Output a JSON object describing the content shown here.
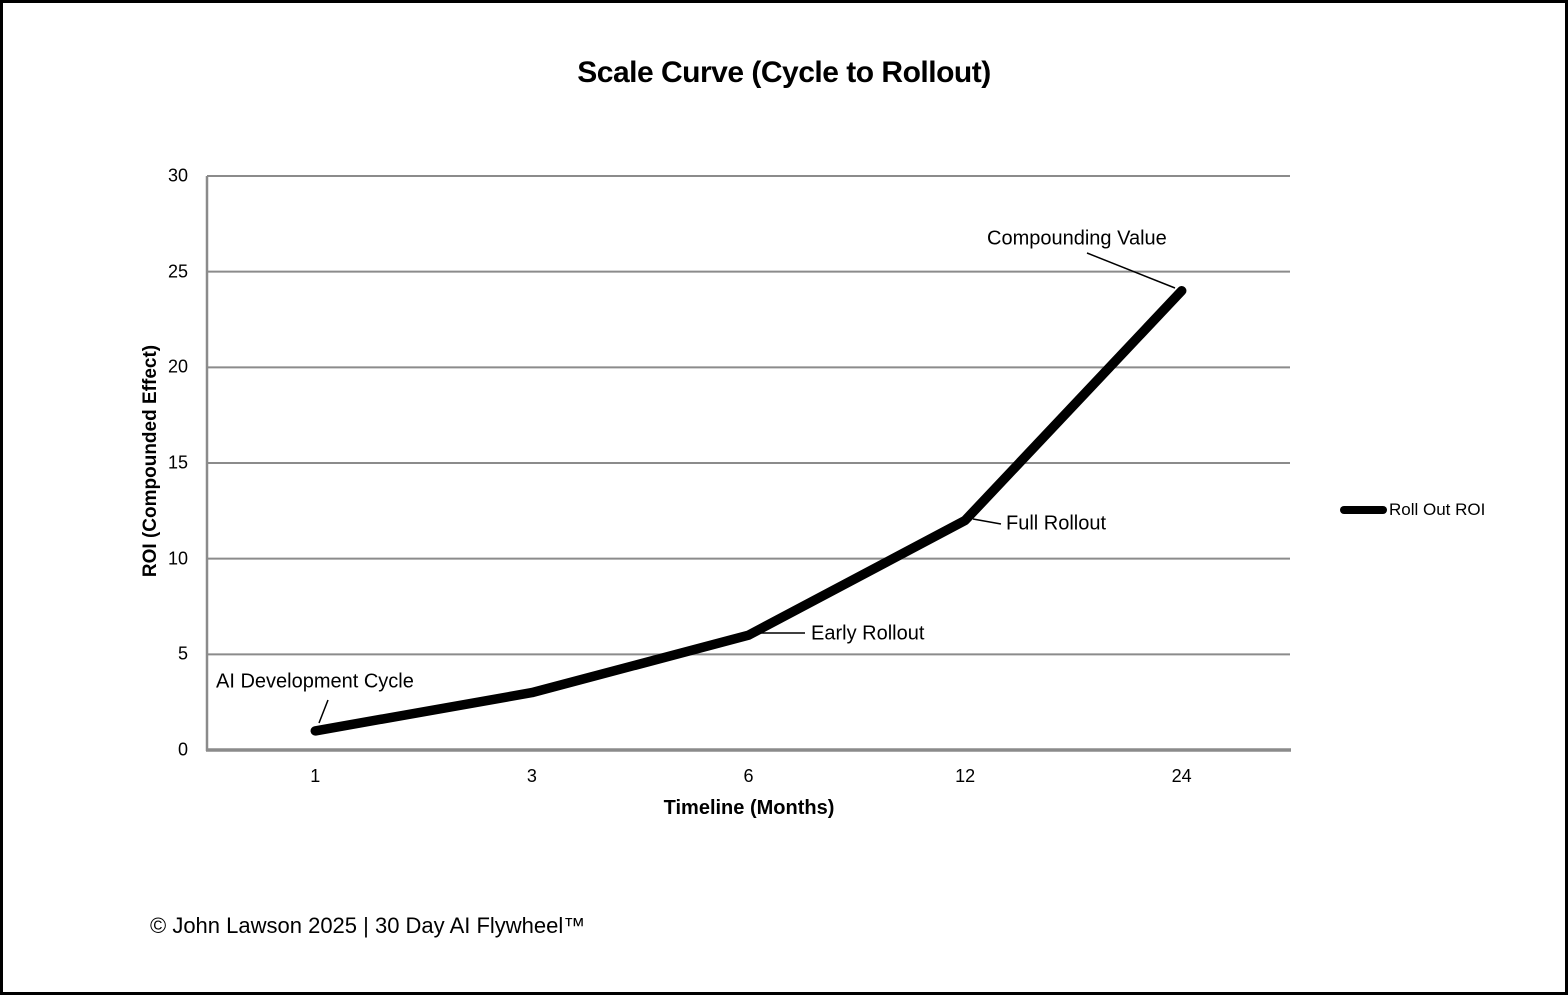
{
  "window": {
    "background_color": "#ffffff",
    "border_color": "#000000"
  },
  "chart_data": {
    "type": "line",
    "title": "Scale Curve (Cycle to Rollout)",
    "xlabel": "Timeline (Months)",
    "ylabel": "ROI (Compounded Effect)",
    "categories": [
      "1",
      "3",
      "6",
      "12",
      "24"
    ],
    "series": [
      {
        "name": "Roll Out ROI",
        "values": [
          1,
          3,
          6,
          12,
          24
        ],
        "color": "#000000",
        "stroke_width": 9.5
      }
    ],
    "ylim": [
      0,
      30
    ],
    "yticks": [
      0,
      5,
      10,
      15,
      20,
      25,
      30
    ],
    "grid": true,
    "gridline_color": "#8b8b8b",
    "axis_color": "#8b8b8b",
    "legend": {
      "position": "right",
      "entries": [
        "Roll Out ROI"
      ]
    },
    "annotations": [
      {
        "label": "AI Development Cycle",
        "point_index": 0
      },
      {
        "label": "Early Rollout",
        "point_index": 2
      },
      {
        "label": "Full Rollout",
        "point_index": 3
      },
      {
        "label": "Compounding Value",
        "point_index": 4
      }
    ]
  },
  "footer": {
    "copyright": "© John Lawson 2025 | 30 Day AI Flywheel™"
  }
}
